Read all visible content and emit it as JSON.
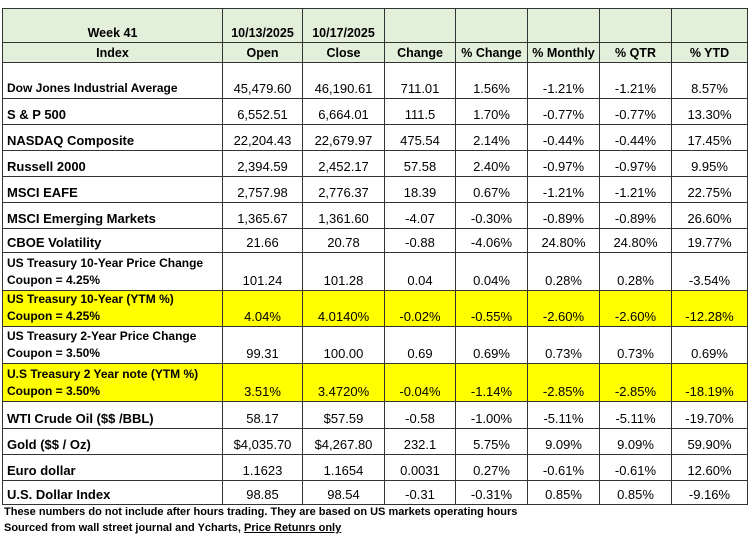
{
  "header": {
    "week": "Week 41",
    "open_date": "10/13/2025",
    "close_date": "10/17/2025",
    "columns": [
      "Index",
      "Open",
      "Close",
      "Change",
      "% Change",
      "% Monthly",
      "% QTR",
      "% YTD"
    ],
    "color": "#e2efda"
  },
  "table": {
    "rows": [
      {
        "cells": [
          "Dow Jones Industrial Average",
          "45,479.60",
          "46,190.61",
          "711.01",
          "1.56%",
          "-1.21%",
          "-1.21%",
          "8.57%"
        ]
      },
      {
        "cells": [
          "S & P 500",
          "6,552.51",
          "6,664.01",
          "111.5",
          "1.70%",
          "-0.77%",
          "-0.77%",
          "13.30%"
        ]
      },
      {
        "cells": [
          "NASDAQ Composite",
          "22,204.43",
          "22,679.97",
          "475.54",
          "2.14%",
          "-0.44%",
          "-0.44%",
          "17.45%"
        ]
      },
      {
        "cells": [
          "Russell 2000",
          "2,394.59",
          "2,452.17",
          "57.58",
          "2.40%",
          "-0.97%",
          "-0.97%",
          "9.95%"
        ]
      },
      {
        "cells": [
          "MSCI EAFE",
          "2,757.98",
          "2,776.37",
          "18.39",
          "0.67%",
          "-1.21%",
          "-1.21%",
          "22.75%"
        ]
      },
      {
        "cells": [
          "MSCI Emerging Markets",
          "1,365.67",
          "1,361.60",
          "-4.07",
          "-0.30%",
          "-0.89%",
          "-0.89%",
          "26.60%"
        ]
      },
      {
        "cells": [
          "CBOE Volatility",
          "21.66",
          "20.78",
          "-0.88",
          "-4.06%",
          "24.80%",
          "24.80%",
          "19.77%"
        ]
      },
      {
        "cells": [
          "US Treasury 10-Year Price Change Coupon = 4.25%",
          "101.24",
          "101.28",
          "0.04",
          "0.04%",
          "0.28%",
          "0.28%",
          "-3.54%"
        ]
      },
      {
        "cells": [
          "US Treasury 10-Year (YTM %) Coupon = 4.25%",
          "4.04%",
          "4.0140%",
          "-0.02%",
          "-0.55%",
          "-2.60%",
          "-2.60%",
          "-12.28%"
        ],
        "highlight": "#ffff00"
      },
      {
        "cells": [
          "US Treasury 2-Year Price Change Coupon = 3.50%",
          "99.31",
          "100.00",
          "0.69",
          "0.69%",
          "0.73%",
          "0.73%",
          "0.69%"
        ]
      },
      {
        "cells": [
          "U.S Treasury 2 Year note (YTM %) Coupon = 3.50%",
          "3.51%",
          "3.4720%",
          "-0.04%",
          "-1.14%",
          "-2.85%",
          "-2.85%",
          "-18.19%"
        ],
        "highlight": "#ffff00"
      },
      {
        "cells": [
          "WTI Crude Oil ($$ /BBL)",
          "58.17",
          "$57.59",
          "-0.58",
          "-1.00%",
          "-5.11%",
          "-5.11%",
          "-19.70%"
        ]
      },
      {
        "cells": [
          "Gold  ($$ / Oz)",
          "$4,035.70",
          "$4,267.80",
          "232.1",
          "5.75%",
          "9.09%",
          "9.09%",
          "59.90%"
        ]
      },
      {
        "cells": [
          "Euro dollar",
          "1.1623",
          "1.1654",
          "0.0031",
          "0.27%",
          "-0.61%",
          "-0.61%",
          "12.60%"
        ]
      },
      {
        "cells": [
          "U.S. Dollar Index",
          "98.85",
          "98.54",
          "-0.31",
          "-0.31%",
          "0.85%",
          "0.85%",
          "-9.16%"
        ]
      }
    ]
  },
  "footer": {
    "note": "These numbers do not include after hours trading. They are based on US markets operating hours",
    "source": "Sourced from wall street journal and Ycharts, ",
    "source_link": "Price Retunrs only"
  }
}
